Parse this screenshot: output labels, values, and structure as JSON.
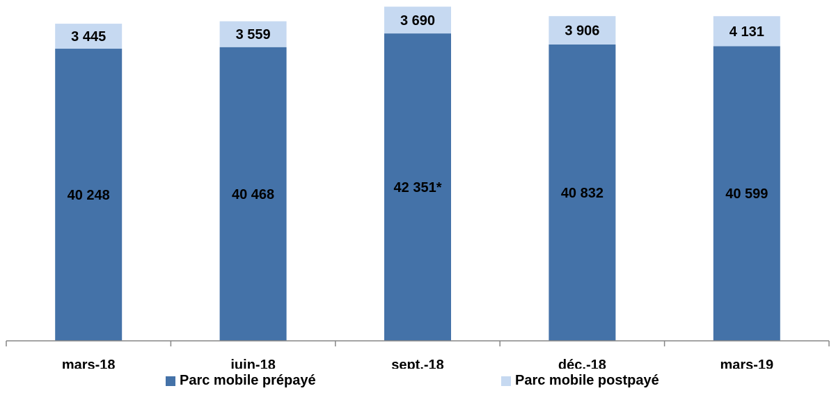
{
  "chart_data": {
    "type": "bar",
    "stacked": true,
    "categories": [
      "mars-18",
      "juin-18",
      "sept.-18",
      "déc.-18",
      "mars-19"
    ],
    "series": [
      {
        "name": "Parc mobile prépayé",
        "color": "#4472A8",
        "values": [
          40248,
          40468,
          42351,
          40832,
          40599
        ],
        "labels": [
          "40 248",
          "40 468",
          "42 351*",
          "40 832",
          "40 599"
        ]
      },
      {
        "name": "Parc mobile postpayé",
        "color": "#C6D9F1",
        "values": [
          3445,
          3559,
          3690,
          3906,
          4131
        ],
        "labels": [
          "3 445",
          "3 559",
          "3 690",
          "3 906",
          "4 131"
        ]
      }
    ],
    "ylim": [
      0,
      46000
    ],
    "grid": false,
    "legend_position": "bottom"
  }
}
